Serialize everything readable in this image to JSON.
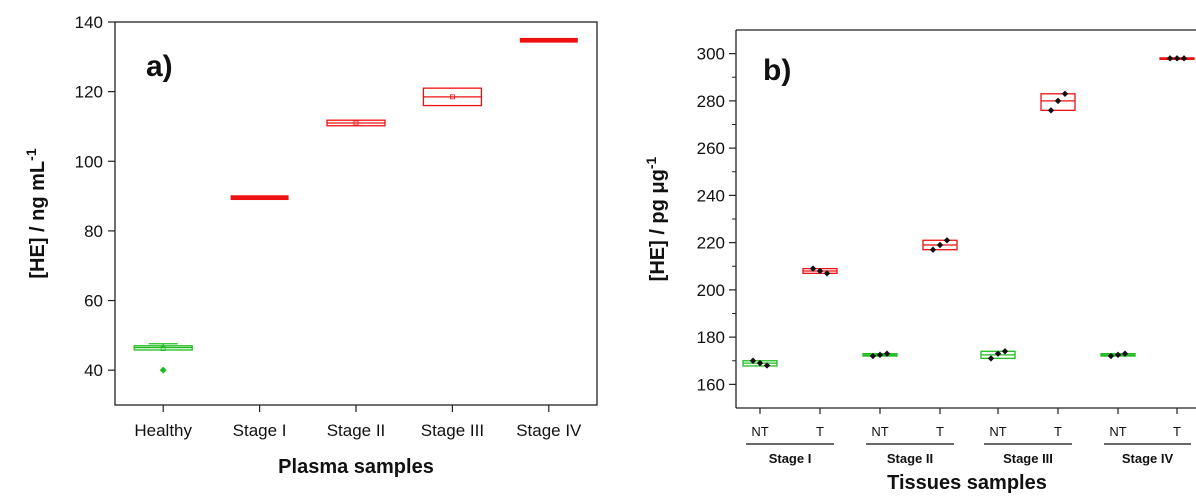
{
  "chart_data": [
    {
      "type": "box",
      "panel_label": "a)",
      "xlabel": "Plasma samples",
      "ylabel_main": "[HE] / ng mL",
      "ylabel_sup": "-1",
      "ylim": [
        30,
        140
      ],
      "yticks": [
        40,
        60,
        80,
        100,
        120,
        140
      ],
      "categories": [
        "Healthy",
        "Stage I",
        "Stage II",
        "Stage III",
        "Stage IV"
      ],
      "boxes": [
        {
          "category": "Healthy",
          "q1": 45.8,
          "median": 46.5,
          "q3": 47.0,
          "whisker_high": 47.6,
          "mean": 46.2,
          "outliers": [
            40.0
          ],
          "color": "#22bb22"
        },
        {
          "category": "Stage I",
          "q1": 89.3,
          "median": 89.5,
          "q3": 89.8,
          "whisker_high": 89.8,
          "mean": 89.5,
          "outliers": [],
          "color": "#ee1111"
        },
        {
          "category": "Stage II",
          "q1": 110.2,
          "median": 111.0,
          "q3": 111.8,
          "whisker_high": 111.8,
          "mean": 111.0,
          "outliers": [],
          "color": "#ee1111"
        },
        {
          "category": "Stage III",
          "q1": 116.0,
          "median": 118.5,
          "q3": 121.0,
          "whisker_high": 121.0,
          "mean": 118.5,
          "outliers": [],
          "color": "#ee1111"
        },
        {
          "category": "Stage IV",
          "q1": 134.5,
          "median": 134.8,
          "q3": 135.0,
          "whisker_high": 135.0,
          "mean": 134.8,
          "outliers": [],
          "color": "#ee1111"
        }
      ]
    },
    {
      "type": "box",
      "panel_label": "b)",
      "xlabel": "Tissues samples",
      "ylabel_main": "[HE] / pg μg",
      "ylabel_sup": "-1",
      "ylim": [
        150,
        310
      ],
      "yticks": [
        160,
        180,
        200,
        220,
        240,
        260,
        280,
        300
      ],
      "categories": [
        "NT",
        "T",
        "NT",
        "T",
        "NT",
        "T",
        "NT",
        "T"
      ],
      "groups": [
        "Stage I",
        "Stage II",
        "Stage III",
        "Stage IV"
      ],
      "boxes": [
        {
          "group": "Stage I",
          "category": "NT",
          "q1": 167.8,
          "median": 169.0,
          "q3": 170.0,
          "points": [
            170,
            169,
            168
          ],
          "color": "#22bb22"
        },
        {
          "group": "Stage I",
          "category": "T",
          "q1": 207.0,
          "median": 208.0,
          "q3": 209.0,
          "points": [
            209,
            208,
            207
          ],
          "color": "#ee1111"
        },
        {
          "group": "Stage II",
          "category": "NT",
          "q1": 172.0,
          "median": 172.5,
          "q3": 173.0,
          "points": [
            172,
            172.5,
            173
          ],
          "color": "#22bb22"
        },
        {
          "group": "Stage II",
          "category": "T",
          "q1": 217.0,
          "median": 219.0,
          "q3": 221.0,
          "points": [
            217,
            219,
            221
          ],
          "color": "#ee1111"
        },
        {
          "group": "Stage III",
          "category": "NT",
          "q1": 171.0,
          "median": 172.5,
          "q3": 174.0,
          "points": [
            171,
            173,
            174
          ],
          "color": "#22bb22"
        },
        {
          "group": "Stage III",
          "category": "T",
          "q1": 276.0,
          "median": 280.0,
          "q3": 283.0,
          "points": [
            276,
            280,
            283
          ],
          "color": "#ee1111"
        },
        {
          "group": "Stage IV",
          "category": "NT",
          "q1": 172.0,
          "median": 172.5,
          "q3": 173.0,
          "points": [
            172,
            172.5,
            173
          ],
          "color": "#22bb22"
        },
        {
          "group": "Stage IV",
          "category": "T",
          "q1": 297.8,
          "median": 298.0,
          "q3": 298.2,
          "points": [
            298,
            298,
            298
          ],
          "color": "#ee1111"
        }
      ]
    }
  ]
}
